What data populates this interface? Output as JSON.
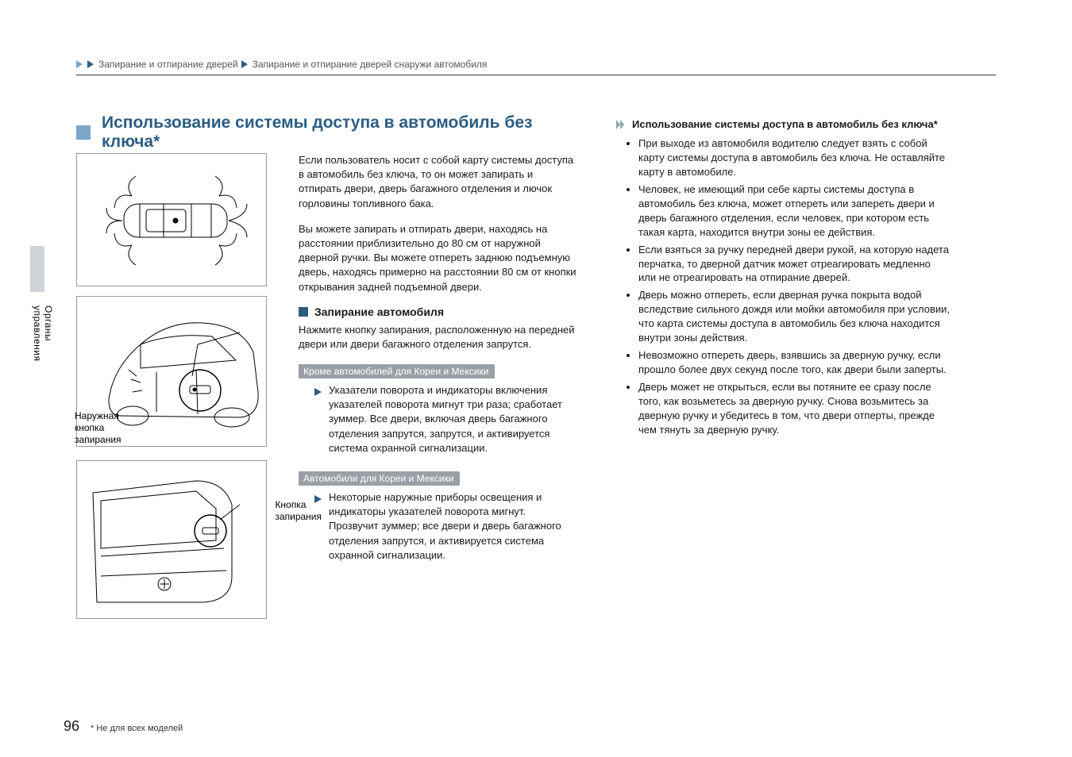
{
  "colors": {
    "accent_light": "#7aa7c9",
    "accent_dark": "#2b5d82",
    "chip_bg": "#9aa0a6",
    "text": "#1a1a1a",
    "rule": "#333333",
    "side_tab_bg": "#d0d4d8"
  },
  "breadcrumb": {
    "seg1": "Запирание и отпирание дверей",
    "seg2": "Запирание и отпирание дверей снаружи автомобиля"
  },
  "side_tab_label": "Органы управления",
  "title": "Использование системы доступа в автомобиль без ключа*",
  "intro_p1": "Если пользователь носит с собой карту системы доступа в автомобиль без ключа, то он может запирать и отпирать двери, дверь багажного отделения и лючок горловины топливного бака.",
  "intro_p2": "Вы можете запирать и отпирать двери, находясь на расстоянии приблизительно до 80 см от наружной дверной ручки. Вы можете отпереть заднюю подъемную дверь, находясь примерно на расстоянии 80 см от кнопки открывания задней подъемной двери.",
  "sub_heading": "Запирание автомобиля",
  "sub_p": "Нажмите кнопку запирания, расположенную на передней двери или двери багажного отделения запрутся.",
  "chip1": "Кроме автомобилей для Кореи и Мексики",
  "bullet1": "Указатели поворота и индикаторы включения указателей поворота мигнут три раза; сработает зуммер. Все двери, включая дверь багажного отделения запрутся, запрутся, и активируется система охранной сигнализации.",
  "chip2": "Автомобили для Кореи и Мексики",
  "bullet2": "Некоторые наружные приборы освещения и индикаторы указателей поворота мигнут. Прозвучит зуммер; все двери и дверь багажного отделения запрутся, и активируется система охранной сигнализации.",
  "fig_labels": {
    "outer_lock_button": "Наружная\nкнопка\nзапирания",
    "lock_button": "Кнопка\nзапирания"
  },
  "right": {
    "heading": "Использование системы доступа в автомобиль без ключа*",
    "items": [
      "При выходе из автомобиля водителю следует взять с собой карту системы доступа в автомобиль без ключа. Не оставляйте карту в автомобиле.",
      "Человек, не имеющий при себе карты системы доступа в автомобиль без ключа, может отпереть или запереть двери и дверь багажного отделения, если человек, при котором есть такая карта, находится внутри зоны ее действия.",
      "Если взяться за ручку передней двери рукой, на которую надета перчатка, то дверной датчик может отреагировать медленно или не отреагировать на отпирание дверей.",
      "Дверь можно отпереть, если дверная ручка покрыта водой вследствие сильного дождя или мойки автомобиля при условии, что карта системы доступа в автомобиль без ключа находится внутри зоны действия.",
      "Невозможно отпереть дверь, взявшись за дверную ручку, если прошло более двух секунд после того, как двери были заперты.",
      "Дверь может не открыться, если вы потяните ее сразу после того, как возьметесь за дверную ручку. Снова возьмитесь за дверную ручку и убедитесь в том, что двери отперты, прежде чем тянуть за дверную ручку."
    ]
  },
  "footer": {
    "page_number": "96",
    "note": "* Не для всех моделей"
  }
}
